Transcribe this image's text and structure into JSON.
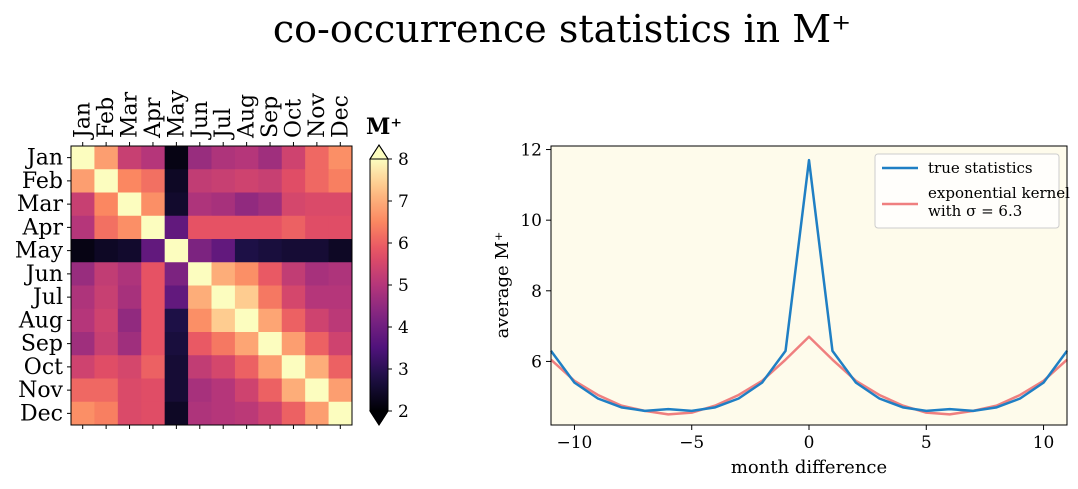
{
  "title": "co-occurrence statistics in M⁺",
  "heatmap": {
    "months": [
      "Jan",
      "Feb",
      "Mar",
      "Apr",
      "May",
      "Jun",
      "Jul",
      "Aug",
      "Sep",
      "Oct",
      "Nov",
      "Dec"
    ],
    "colorbar_label": "M⁺",
    "colorbar_ticks": [
      "2",
      "3",
      "4",
      "5",
      "6",
      "7",
      "8"
    ],
    "vmin": 2,
    "vmax": 8
  },
  "chart_data": [
    {
      "type": "heatmap",
      "title": "co-occurrence statistics in M⁺",
      "x_categories": [
        "Jan",
        "Feb",
        "Mar",
        "Apr",
        "May",
        "Jun",
        "Jul",
        "Aug",
        "Sep",
        "Oct",
        "Nov",
        "Dec"
      ],
      "y_categories": [
        "Jan",
        "Feb",
        "Mar",
        "Apr",
        "May",
        "Jun",
        "Jul",
        "Aug",
        "Sep",
        "Oct",
        "Nov",
        "Dec"
      ],
      "colormap": "magma",
      "vmin": 2,
      "vmax": 8,
      "values": [
        [
          8.0,
          6.8,
          5.3,
          5.0,
          2.2,
          4.6,
          4.9,
          5.0,
          4.7,
          5.4,
          6.1,
          6.6
        ],
        [
          6.8,
          8.0,
          6.5,
          6.2,
          2.4,
          5.2,
          5.3,
          5.4,
          5.3,
          5.7,
          6.1,
          6.4
        ],
        [
          5.3,
          6.5,
          8.0,
          6.6,
          2.5,
          4.9,
          4.8,
          4.5,
          4.7,
          5.5,
          5.6,
          5.6
        ],
        [
          5.0,
          6.2,
          6.6,
          8.0,
          3.8,
          5.8,
          5.8,
          5.8,
          5.8,
          6.0,
          5.7,
          5.7
        ],
        [
          2.2,
          2.4,
          2.5,
          3.8,
          8.0,
          4.2,
          3.8,
          2.8,
          2.7,
          2.6,
          2.6,
          2.4
        ],
        [
          4.6,
          5.2,
          4.9,
          5.8,
          4.2,
          8.0,
          7.0,
          6.6,
          5.9,
          5.2,
          4.8,
          4.9
        ],
        [
          4.9,
          5.3,
          4.8,
          5.8,
          3.8,
          7.0,
          8.0,
          7.4,
          6.3,
          5.5,
          5.0,
          5.0
        ],
        [
          5.0,
          5.4,
          4.5,
          5.8,
          2.8,
          6.6,
          7.4,
          8.0,
          6.9,
          6.0,
          5.4,
          5.1
        ],
        [
          4.7,
          5.3,
          4.7,
          5.8,
          2.7,
          5.9,
          6.3,
          6.9,
          8.0,
          6.8,
          6.0,
          5.4
        ],
        [
          5.4,
          5.7,
          5.5,
          6.0,
          2.6,
          5.2,
          5.5,
          6.0,
          6.8,
          8.0,
          7.0,
          6.0
        ],
        [
          6.1,
          6.1,
          5.6,
          5.7,
          2.6,
          4.8,
          5.0,
          5.4,
          6.0,
          7.0,
          8.0,
          6.8
        ],
        [
          6.6,
          6.4,
          5.6,
          5.7,
          2.4,
          4.9,
          5.0,
          5.1,
          5.4,
          6.0,
          6.8,
          8.0
        ]
      ]
    },
    {
      "type": "line",
      "xlabel": "month difference",
      "ylabel": "average M⁺",
      "xlim": [
        -11,
        11
      ],
      "ylim": [
        4.2,
        12.1
      ],
      "x_ticks": [
        -10,
        -5,
        0,
        5,
        10
      ],
      "x_tick_labels": [
        "−10",
        "−5",
        "0",
        "5",
        "10"
      ],
      "y_ticks": [
        6,
        8,
        10,
        12
      ],
      "y_tick_labels": [
        "6",
        "8",
        "10",
        "12"
      ],
      "background": "#fefbeb",
      "legend_position": "top-right",
      "x": [
        -11,
        -10,
        -9,
        -8,
        -7,
        -6,
        -5,
        -4,
        -3,
        -2,
        -1,
        0,
        1,
        2,
        3,
        4,
        5,
        6,
        7,
        8,
        9,
        10,
        11
      ],
      "series": [
        {
          "name": "true statistics",
          "color": "#1f7fc4",
          "values": [
            6.3,
            5.4,
            4.95,
            4.7,
            4.6,
            4.65,
            4.6,
            4.7,
            4.95,
            5.4,
            6.3,
            11.7,
            6.3,
            5.4,
            4.95,
            4.7,
            4.6,
            4.65,
            4.6,
            4.7,
            4.95,
            5.4,
            6.3
          ]
        },
        {
          "name": "exponential kernel",
          "name_line2": "with σ = 6.3",
          "color": "#ef7f7f",
          "values": [
            6.05,
            5.45,
            5.05,
            4.75,
            4.6,
            4.5,
            4.55,
            4.75,
            5.05,
            5.45,
            6.05,
            6.7,
            6.05,
            5.45,
            5.05,
            4.75,
            4.55,
            4.5,
            4.6,
            4.75,
            5.05,
            5.45,
            6.05
          ]
        }
      ]
    }
  ]
}
